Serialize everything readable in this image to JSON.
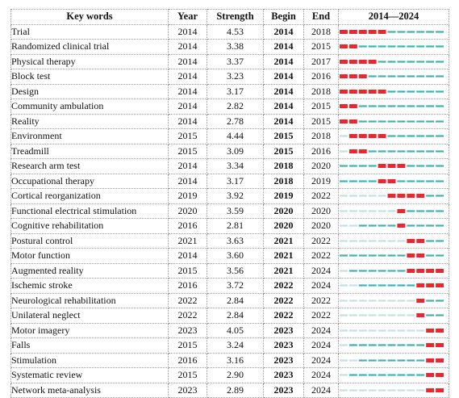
{
  "chart_data": {
    "type": "table",
    "headers": {
      "keyword": "Key words",
      "year": "Year",
      "strength": "Strength",
      "begin": "Begin",
      "end": "End",
      "range": "2014—2024"
    },
    "timeline": {
      "start": 2014,
      "end": 2024
    },
    "colors": {
      "burst": "#e8282e",
      "active": "#3cb4b4",
      "inactive": "#c4e0e4"
    },
    "rows": [
      {
        "keyword": "Trial",
        "year": 2014,
        "strength": "4.53",
        "begin": 2014,
        "end": 2018
      },
      {
        "keyword": "Randomized clinical trial",
        "year": 2014,
        "strength": "3.38",
        "begin": 2014,
        "end": 2015
      },
      {
        "keyword": "Physical therapy",
        "year": 2014,
        "strength": "3.37",
        "begin": 2014,
        "end": 2017
      },
      {
        "keyword": "Block test",
        "year": 2014,
        "strength": "3.23",
        "begin": 2014,
        "end": 2016
      },
      {
        "keyword": "Design",
        "year": 2014,
        "strength": "3.17",
        "begin": 2014,
        "end": 2018
      },
      {
        "keyword": "Community ambulation",
        "year": 2014,
        "strength": "2.82",
        "begin": 2014,
        "end": 2015
      },
      {
        "keyword": "Reality",
        "year": 2014,
        "strength": "2.78",
        "begin": 2014,
        "end": 2015
      },
      {
        "keyword": "Environment",
        "year": 2015,
        "strength": "4.44",
        "begin": 2015,
        "end": 2018
      },
      {
        "keyword": "Treadmill",
        "year": 2015,
        "strength": "3.09",
        "begin": 2015,
        "end": 2016
      },
      {
        "keyword": "Research arm test",
        "year": 2014,
        "strength": "3.34",
        "begin": 2018,
        "end": 2020
      },
      {
        "keyword": "Occupational therapy",
        "year": 2014,
        "strength": "3.17",
        "begin": 2018,
        "end": 2019
      },
      {
        "keyword": "Cortical reorganization",
        "year": 2019,
        "strength": "3.92",
        "begin": 2019,
        "end": 2022
      },
      {
        "keyword": "Functional electrical stimulation",
        "year": 2020,
        "strength": "3.59",
        "begin": 2020,
        "end": 2020
      },
      {
        "keyword": "Cognitive rehabilitation",
        "year": 2016,
        "strength": "2.81",
        "begin": 2020,
        "end": 2020
      },
      {
        "keyword": "Postural control",
        "year": 2021,
        "strength": "3.63",
        "begin": 2021,
        "end": 2022
      },
      {
        "keyword": "Motor function",
        "year": 2014,
        "strength": "3.60",
        "begin": 2021,
        "end": 2022
      },
      {
        "keyword": "Augmented reality",
        "year": 2015,
        "strength": "3.56",
        "begin": 2021,
        "end": 2024
      },
      {
        "keyword": "Ischemic stroke",
        "year": 2016,
        "strength": "3.72",
        "begin": 2022,
        "end": 2024
      },
      {
        "keyword": "Neurological rehabilitation",
        "year": 2022,
        "strength": "2.84",
        "begin": 2022,
        "end": 2022
      },
      {
        "keyword": "Unilateral neglect",
        "year": 2022,
        "strength": "2.84",
        "begin": 2022,
        "end": 2022
      },
      {
        "keyword": "Motor imagery",
        "year": 2023,
        "strength": "4.05",
        "begin": 2023,
        "end": 2024
      },
      {
        "keyword": "Falls",
        "year": 2015,
        "strength": "3.24",
        "begin": 2023,
        "end": 2024
      },
      {
        "keyword": "Stimulation",
        "year": 2016,
        "strength": "3.16",
        "begin": 2023,
        "end": 2024
      },
      {
        "keyword": "Systematic review",
        "year": 2015,
        "strength": "2.90",
        "begin": 2023,
        "end": 2024
      },
      {
        "keyword": "Network meta-analysis",
        "year": 2023,
        "strength": "2.89",
        "begin": 2023,
        "end": 2024
      }
    ]
  }
}
